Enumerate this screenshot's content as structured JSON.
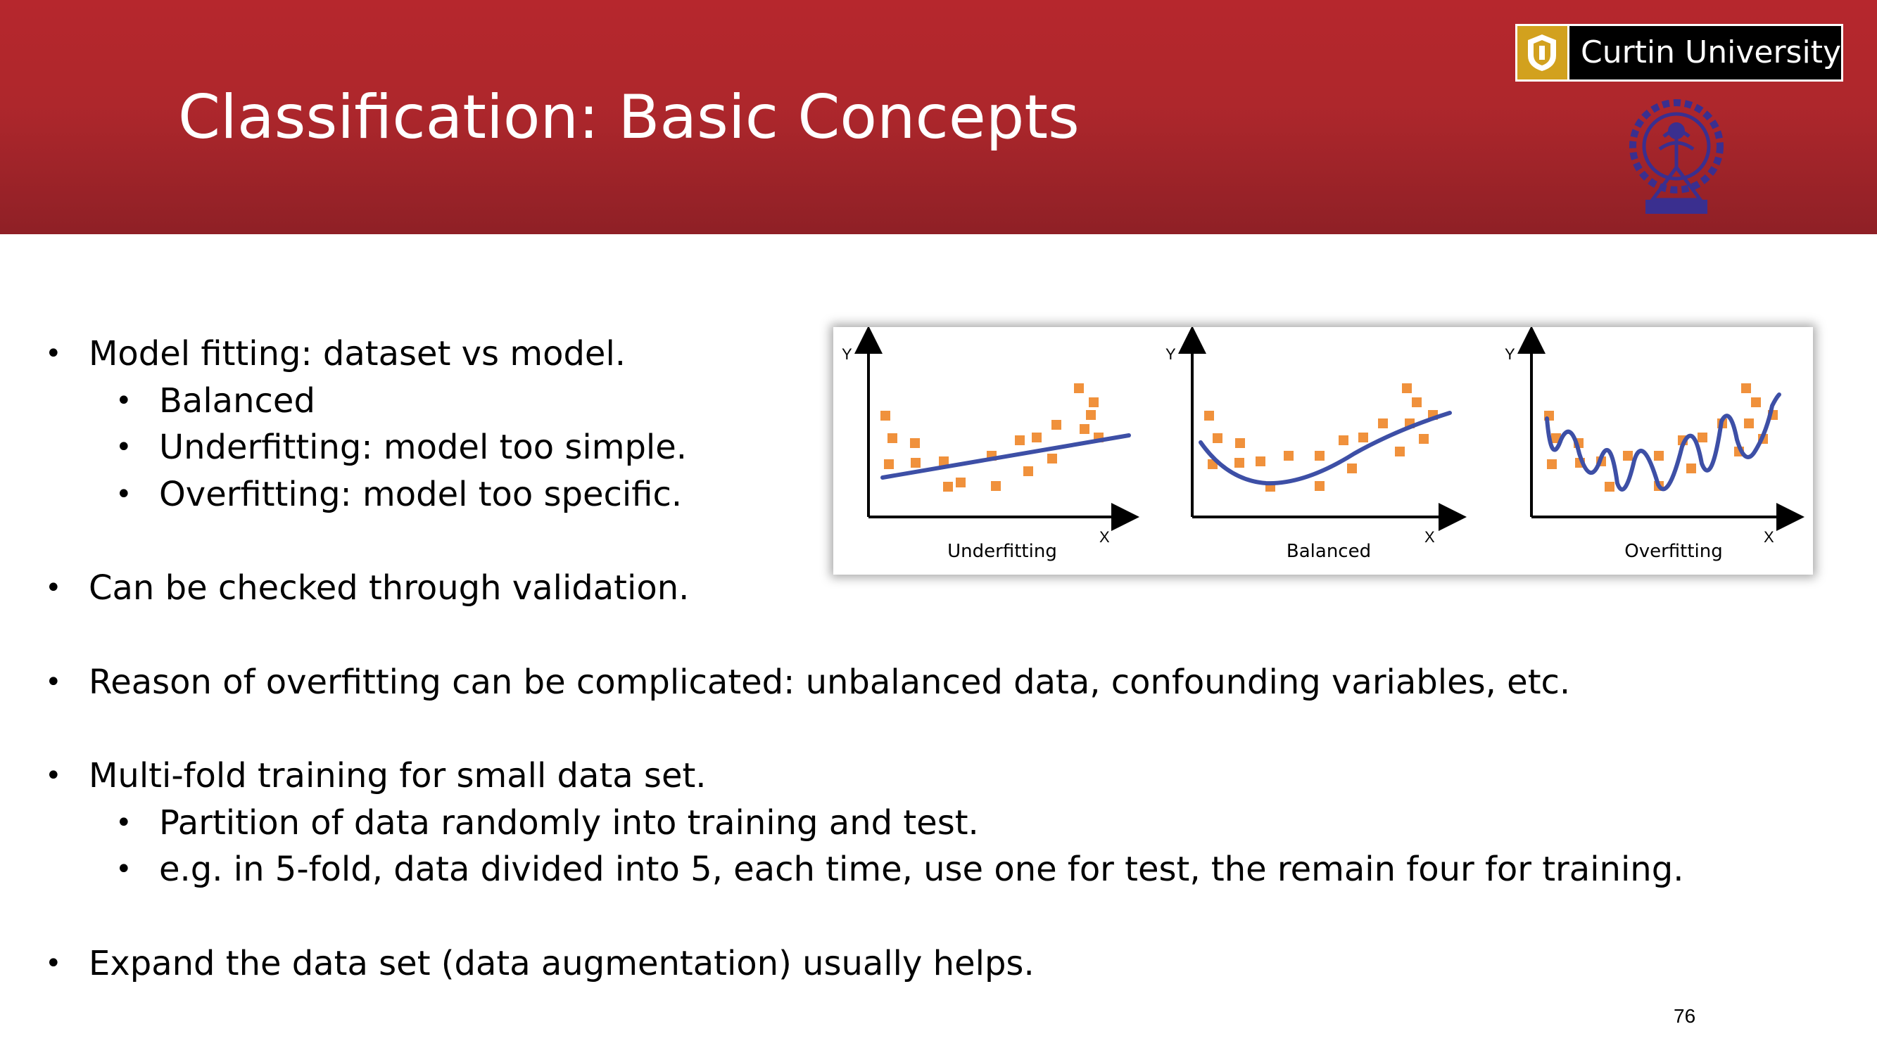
{
  "slide": {
    "title": "Classification: Basic Concepts",
    "page_number": "76",
    "header_color": "#b1272c"
  },
  "logo": {
    "text": "Curtin University",
    "mark_color": "#d2a11e",
    "emblem_color": "#3a2f8f"
  },
  "bullets": [
    {
      "text": "Model fitting: dataset vs model.",
      "level": 1
    },
    {
      "text": "Balanced",
      "level": 2
    },
    {
      "text": "Underfitting: model too simple.",
      "level": 2
    },
    {
      "text": "Overfitting: model too specific.",
      "level": 2
    },
    {
      "text": "Can be checked through validation.",
      "level": 1
    },
    {
      "text": "Reason of overfitting can be complicated: unbalanced data, confounding variables, etc.",
      "level": 1
    },
    {
      "text": "Multi-fold training for small data set.",
      "level": 1
    },
    {
      "text": "Partition of data randomly into training and test.",
      "level": 2
    },
    {
      "text": "e.g. in 5-fold, data divided into 5, each time, use one for test, the remain four for training.",
      "level": 2
    },
    {
      "text": "Expand the data set (data augmentation) usually helps.",
      "level": 1
    }
  ],
  "figure": {
    "axis_y": "Y",
    "axis_x": "X",
    "panels": [
      {
        "label": "Underfitting"
      },
      {
        "label": "Balanced"
      },
      {
        "label": "Overfitting"
      }
    ],
    "point_color": "#f0913c",
    "curve_color": "#3d4fa6"
  }
}
